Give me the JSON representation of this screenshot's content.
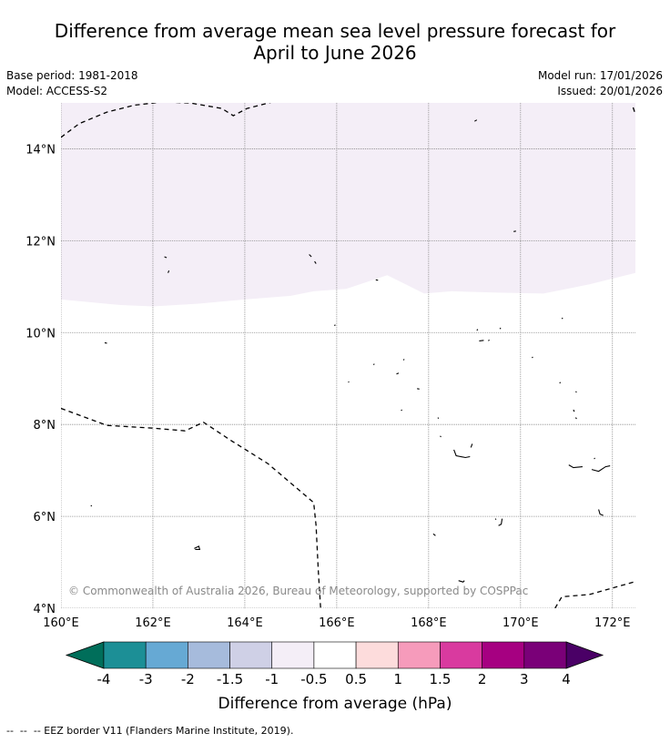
{
  "header": {
    "title_line1": "Difference from average mean sea level pressure forecast for",
    "title_line2": "April to June 2026",
    "base_period": "Base period: 1981-2018",
    "model": "Model: ACCESS-S2",
    "model_run": "Model run: 17/01/2026",
    "issued": "Issued: 20/01/2026"
  },
  "chart_data": {
    "type": "heatmap",
    "title": "Difference from average mean sea level pressure forecast for April to June 2026",
    "xlim": [
      160,
      172.5
    ],
    "ylim": [
      4,
      15
    ],
    "x_ticks": [
      160,
      162,
      164,
      166,
      168,
      170,
      172
    ],
    "y_ticks": [
      4,
      6,
      8,
      10,
      12,
      14
    ],
    "x_tick_labels": [
      "160°E",
      "162°E",
      "164°E",
      "166°E",
      "168°E",
      "170°E",
      "172°E"
    ],
    "y_tick_labels": [
      "4°N",
      "6°N",
      "8°N",
      "10°N",
      "12°N",
      "14°N"
    ],
    "grid": true,
    "regions": [
      {
        "name": "region-minus-1-to-minus-0-5",
        "range_hPa": [
          -1,
          -0.5
        ],
        "color": "#f4eef7",
        "lower_boundary": [
          [
            160,
            10.72
          ],
          [
            161.3,
            10.6
          ],
          [
            162,
            10.57
          ],
          [
            163,
            10.63
          ],
          [
            164,
            10.72
          ],
          [
            165,
            10.8
          ],
          [
            165.5,
            10.9
          ],
          [
            166.2,
            10.95
          ],
          [
            166.8,
            11.15
          ],
          [
            167.1,
            11.25
          ],
          [
            167.5,
            11.05
          ],
          [
            167.9,
            10.85
          ],
          [
            168.5,
            10.9
          ],
          [
            169.5,
            10.87
          ],
          [
            170.5,
            10.85
          ],
          [
            171.5,
            11.05
          ],
          [
            172.5,
            11.3
          ]
        ]
      }
    ],
    "eez_lines": [
      [
        [
          160,
          14.25
        ],
        [
          160.4,
          14.55
        ],
        [
          161,
          14.8
        ],
        [
          161.6,
          14.95
        ],
        [
          162.2,
          15.02
        ],
        [
          162.8,
          15.0
        ],
        [
          163.5,
          14.88
        ],
        [
          163.75,
          14.72
        ],
        [
          164.05,
          14.88
        ],
        [
          164.6,
          15.02
        ]
      ],
      [
        [
          172.45,
          14.9
        ],
        [
          172.5,
          14.75
        ]
      ],
      [
        [
          160,
          8.35
        ],
        [
          161,
          7.98
        ],
        [
          162,
          7.92
        ],
        [
          162.7,
          7.86
        ],
        [
          163.1,
          8.05
        ],
        [
          163.7,
          7.65
        ],
        [
          164.5,
          7.15
        ],
        [
          165.5,
          6.3
        ],
        [
          165.55,
          5.8
        ],
        [
          165.6,
          4.8
        ],
        [
          165.65,
          4.0
        ]
      ],
      [
        [
          170.75,
          4.0
        ],
        [
          170.9,
          4.25
        ],
        [
          171.5,
          4.3
        ],
        [
          172.5,
          4.58
        ]
      ]
    ],
    "islands": [
      [
        [
          162.25,
          11.65
        ],
        [
          162.3,
          11.63
        ]
      ],
      [
        [
          162.35,
          11.35
        ],
        [
          162.33,
          11.3
        ]
      ],
      [
        [
          165.4,
          11.7
        ],
        [
          165.45,
          11.65
        ]
      ],
      [
        [
          165.52,
          11.55
        ],
        [
          165.55,
          11.5
        ]
      ],
      [
        [
          169,
          14.6
        ],
        [
          169.05,
          14.63
        ]
      ],
      [
        [
          169.85,
          12.2
        ],
        [
          169.9,
          12.21
        ]
      ],
      [
        [
          166.85,
          11.15
        ],
        [
          166.9,
          11.14
        ]
      ],
      [
        [
          165.95,
          10.15
        ],
        [
          165.97,
          10.17
        ]
      ],
      [
        [
          160.95,
          9.78
        ],
        [
          161.0,
          9.77
        ]
      ],
      [
        [
          167.75,
          8.78
        ],
        [
          167.8,
          8.77
        ]
      ],
      [
        [
          166.25,
          8.92
        ],
        [
          166.27,
          8.93
        ]
      ],
      [
        [
          167.3,
          9.1
        ],
        [
          167.35,
          9.12
        ]
      ],
      [
        [
          167.45,
          9.4
        ],
        [
          167.47,
          9.42
        ]
      ],
      [
        [
          166.8,
          9.3
        ],
        [
          166.82,
          9.32
        ]
      ],
      [
        [
          167.4,
          8.3
        ],
        [
          167.42,
          8.32
        ]
      ],
      [
        [
          169.05,
          10.05
        ],
        [
          169.07,
          10.07
        ]
      ],
      [
        [
          169.1,
          9.82
        ],
        [
          169.2,
          9.83
        ]
      ],
      [
        [
          169.3,
          9.82
        ],
        [
          169.32,
          9.84
        ]
      ],
      [
        [
          169.55,
          10.08
        ],
        [
          169.57,
          10.1
        ]
      ],
      [
        [
          170.25,
          9.45
        ],
        [
          170.27,
          9.47
        ]
      ],
      [
        [
          170.9,
          10.3
        ],
        [
          170.92,
          10.32
        ]
      ],
      [
        [
          170.85,
          8.9
        ],
        [
          170.87,
          8.92
        ]
      ],
      [
        [
          171.2,
          8.72
        ],
        [
          171.22,
          8.7
        ]
      ],
      [
        [
          171.15,
          8.32
        ],
        [
          171.17,
          8.28
        ]
      ],
      [
        [
          171.2,
          8.15
        ],
        [
          171.22,
          8.12
        ]
      ],
      [
        [
          168.2,
          8.15
        ],
        [
          168.22,
          8.13
        ]
      ],
      [
        [
          168.25,
          7.75
        ],
        [
          168.27,
          7.73
        ]
      ],
      [
        [
          168.55,
          7.45
        ],
        [
          168.6,
          7.32
        ],
        [
          168.8,
          7.28
        ],
        [
          168.9,
          7.3
        ]
      ],
      [
        [
          168.92,
          7.5
        ],
        [
          168.95,
          7.58
        ]
      ],
      [
        [
          171.05,
          7.12
        ],
        [
          171.15,
          7.06
        ],
        [
          171.35,
          7.08
        ]
      ],
      [
        [
          171.55,
          7.02
        ],
        [
          171.7,
          6.98
        ],
        [
          171.85,
          7.08
        ],
        [
          171.95,
          7.1
        ]
      ],
      [
        [
          171.6,
          7.25
        ],
        [
          171.62,
          7.27
        ]
      ],
      [
        [
          171.7,
          6.15
        ],
        [
          171.73,
          6.05
        ],
        [
          171.8,
          6.02
        ]
      ],
      [
        [
          169.45,
          5.95
        ],
        [
          169.47,
          5.93
        ]
      ],
      [
        [
          169.6,
          5.95
        ],
        [
          169.58,
          5.83
        ],
        [
          169.52,
          5.8
        ]
      ],
      [
        [
          168.1,
          5.62
        ],
        [
          168.15,
          5.58
        ]
      ],
      [
        [
          168.65,
          4.6
        ],
        [
          168.75,
          4.57
        ],
        [
          168.78,
          4.6
        ]
      ],
      [
        [
          160.65,
          6.22
        ],
        [
          160.67,
          6.24
        ]
      ],
      [
        [
          162.9,
          5.3
        ],
        [
          163.0,
          5.35
        ],
        [
          163.02,
          5.28
        ],
        [
          162.92,
          5.28
        ]
      ]
    ],
    "watermark": "© Commonwealth of Australia 2026, Bureau of Meteorology, supported by COSPPac",
    "colorbar": {
      "label": "Difference from average (hPa)",
      "tick_labels": [
        "-4",
        "-3",
        "-2",
        "-1.5",
        "-1",
        "-0.5",
        "0.5",
        "1",
        "1.5",
        "2",
        "3",
        "4"
      ],
      "under_color": "#006e5a",
      "over_color": "#4a0066",
      "colors": [
        "#1c8f96",
        "#66a9d4",
        "#a6bbdc",
        "#cfd0e6",
        "#f4eef7",
        "#ffffff",
        "#fddcdc",
        "#f69bbb",
        "#d93a9f",
        "#a60081",
        "#7a0078"
      ]
    }
  },
  "footer": {
    "eez_legend": "--  --  -- EEZ border V11 (Flanders Marine Institute, 2019)."
  }
}
